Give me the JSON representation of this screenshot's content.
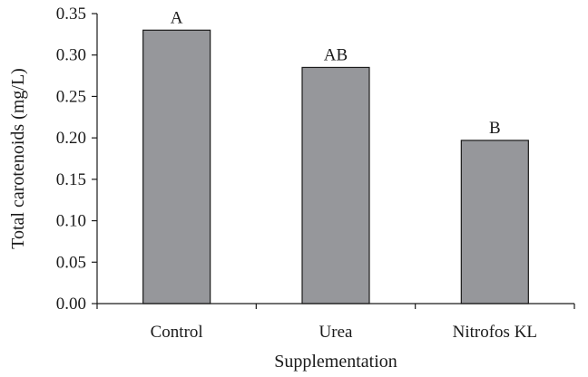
{
  "chart_data": {
    "type": "bar",
    "categories": [
      "Control",
      "Urea",
      "Nitrofos KL"
    ],
    "values": [
      0.33,
      0.285,
      0.197
    ],
    "bar_labels": [
      "A",
      "AB",
      "B"
    ],
    "xlabel": "Supplementation",
    "ylabel": "Total carotenoids (mg/L)",
    "ylim": [
      0,
      0.35
    ],
    "yticks": [
      "0.00",
      "0.05",
      "0.10",
      "0.15",
      "0.20",
      "0.25",
      "0.30",
      "0.35"
    ],
    "grid": false,
    "legend": "none",
    "bar_color": "#96979b",
    "axis_color": "#1a1a1a"
  }
}
